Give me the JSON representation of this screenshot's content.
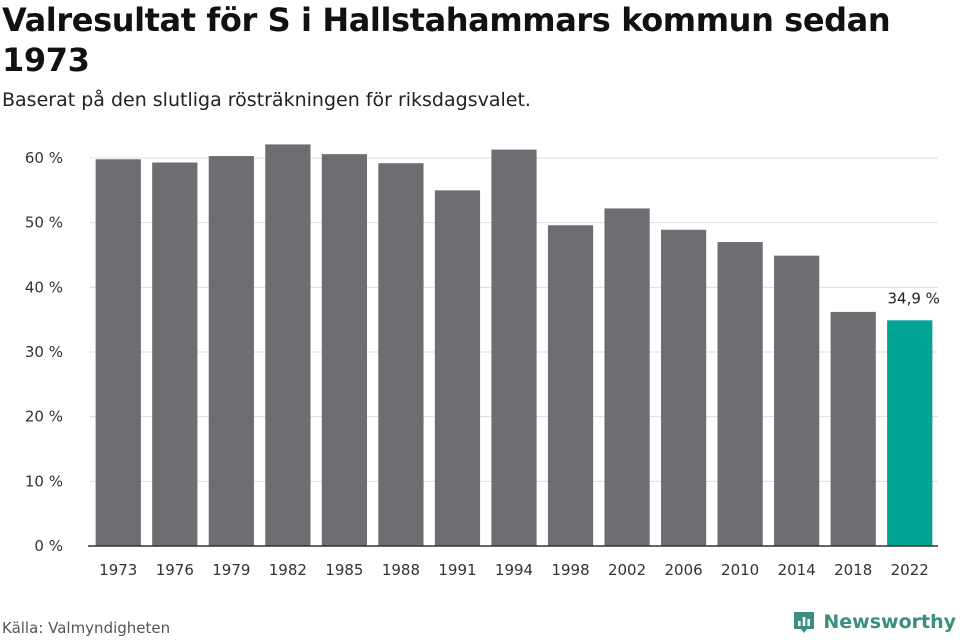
{
  "header": {
    "title": "Valresultat för S i Hallstahammars kommun sedan 1973",
    "subtitle": "Baserat på den slutliga rösträkningen för riksdagsvalet."
  },
  "footer": {
    "source": "Källa: Valmyndigheten",
    "brand": "Newsworthy"
  },
  "colors": {
    "bar": "#6e6d72",
    "highlight": "#00a394",
    "grid": "#dddddd",
    "axis": "#333333",
    "brand": "#3a8f7f"
  },
  "icons": {
    "brand": "newsworthy-logo-icon"
  },
  "chart_data": {
    "type": "bar",
    "title": "Valresultat för S i Hallstahammars kommun sedan 1973",
    "subtitle": "Baserat på den slutliga rösträkningen för riksdagsvalet.",
    "categories": [
      "1973",
      "1976",
      "1979",
      "1982",
      "1985",
      "1988",
      "1991",
      "1994",
      "1998",
      "2002",
      "2006",
      "2010",
      "2014",
      "2018",
      "2022"
    ],
    "values": [
      59.8,
      59.3,
      60.3,
      62.1,
      60.6,
      59.2,
      55.0,
      61.3,
      49.6,
      52.2,
      48.9,
      47.0,
      44.9,
      36.2,
      34.9
    ],
    "ylim": [
      0,
      60
    ],
    "yticks": [
      0,
      10,
      20,
      30,
      40,
      50,
      60
    ],
    "yticklabels": [
      "0 %",
      "10 %",
      "20 %",
      "30 %",
      "40 %",
      "50 %",
      "60 %"
    ],
    "highlight_index": 14,
    "data_labels": [
      {
        "index": 14,
        "text": "34,9 %"
      }
    ],
    "xlabel": "",
    "ylabel": "",
    "grid": true,
    "legend": false
  }
}
